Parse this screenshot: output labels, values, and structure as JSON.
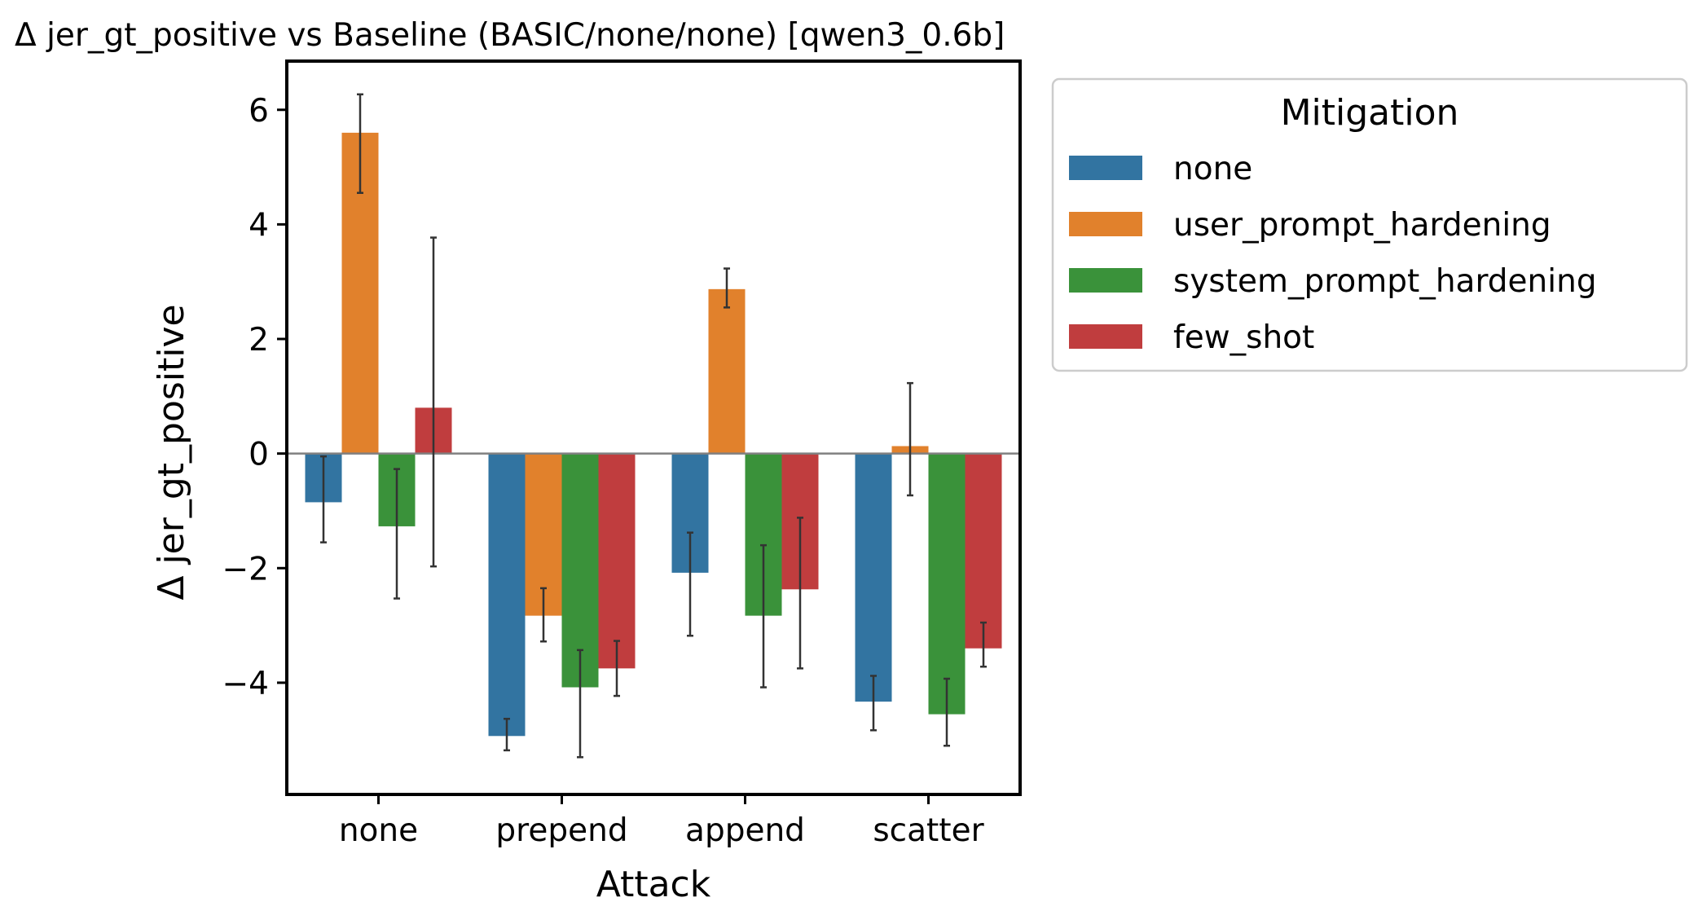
{
  "chart_data": {
    "type": "bar",
    "title": "Δ jer_gt_positive vs Baseline (BASIC/none/none) [qwen3_0.6b]",
    "xlabel": "Attack",
    "ylabel": "Δ jer_gt_positive",
    "categories": [
      "none",
      "prepend",
      "append",
      "scatter"
    ],
    "ylim": [
      -5.95,
      6.85
    ],
    "yticks": [
      6,
      4,
      2,
      0,
      -2,
      -4
    ],
    "ytick_labels": [
      "6",
      "4",
      "2",
      "0",
      "−2",
      "−4"
    ],
    "grid": false,
    "zero_line": true,
    "legend": {
      "title": "Mitigation",
      "placement": "outside-top-right"
    },
    "series": [
      {
        "name": "none",
        "color": "#3274a1",
        "values": [
          -0.85,
          -4.93,
          -2.08,
          -4.33
        ],
        "err_low": [
          -1.55,
          -5.18,
          -3.18,
          -4.83
        ],
        "err_high": [
          -0.05,
          -4.63,
          -1.38,
          -3.88
        ]
      },
      {
        "name": "user_prompt_hardening",
        "color": "#e1812c",
        "values": [
          5.6,
          -2.83,
          2.87,
          0.13
        ],
        "err_low": [
          4.55,
          -3.28,
          2.55,
          -0.73
        ],
        "err_high": [
          6.27,
          -2.35,
          3.23,
          1.23
        ]
      },
      {
        "name": "system_prompt_hardening",
        "color": "#3a923a",
        "values": [
          -1.27,
          -4.08,
          -2.83,
          -4.55
        ],
        "err_low": [
          -2.53,
          -5.3,
          -4.08,
          -5.1
        ],
        "err_high": [
          -0.27,
          -3.43,
          -1.6,
          -3.93
        ]
      },
      {
        "name": "few_shot",
        "color": "#c03d3e",
        "values": [
          0.8,
          -3.75,
          -2.37,
          -3.4
        ],
        "err_low": [
          -1.97,
          -4.23,
          -3.75,
          -3.72
        ],
        "err_high": [
          3.77,
          -3.27,
          -1.12,
          -2.95
        ]
      }
    ]
  }
}
